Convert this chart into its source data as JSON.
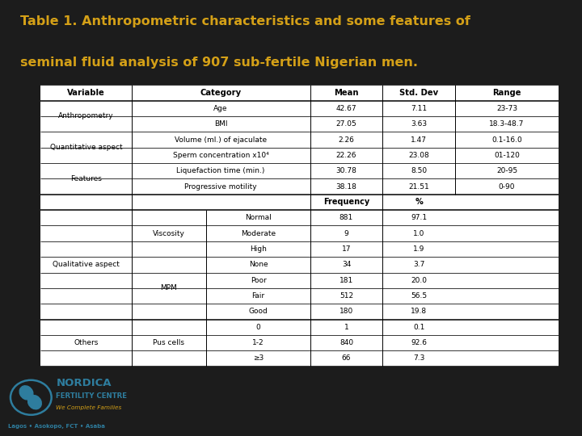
{
  "title_line1": "Table 1. Anthropometric characteristics and some features of",
  "title_line2": "seminal fluid analysis of 907 sub-fertile Nigerian men.",
  "title_color": "#D4A017",
  "bg_color": "#1c1c1c",
  "table_bg": "#ffffff",
  "rows_quant": [
    {
      "var": "Anthropometry",
      "cat2": "Age",
      "mean": "42.67",
      "std": "7.11",
      "range": "23-73"
    },
    {
      "var": "Anthropometry",
      "cat2": "BMI",
      "mean": "27.05",
      "std": "3.63",
      "range": "18.3-48.7"
    },
    {
      "var": "Quantitative aspect",
      "cat2": "Volume (ml.) of ejaculate",
      "mean": "2.26",
      "std": "1.47",
      "range": "0.1-16.0"
    },
    {
      "var": "Quantitative aspect",
      "cat2": "Sperm concentration x10⁴",
      "mean": "22.26",
      "std": "23.08",
      "range": "01-120"
    },
    {
      "var": "Features",
      "cat2": "Liquefaction time (min.)",
      "mean": "30.78",
      "std": "8.50",
      "range": "20-95"
    },
    {
      "var": "Features",
      "cat2": "Progressive motility",
      "mean": "38.18",
      "std": "21.51",
      "range": "0-90"
    }
  ],
  "rows_qual": [
    {
      "var": "Qualitative aspect",
      "cat1": "Viscosity",
      "cat2": "Normal",
      "freq": "881",
      "pct": "97.1"
    },
    {
      "var": "Qualitative aspect",
      "cat1": "Viscosity",
      "cat2": "Moderate",
      "freq": "9",
      "pct": "1.0"
    },
    {
      "var": "Qualitative aspect",
      "cat1": "Viscosity",
      "cat2": "High",
      "freq": "17",
      "pct": "1.9"
    },
    {
      "var": "Qualitative aspect",
      "cat1": "MPM",
      "cat2": "None",
      "freq": "34",
      "pct": "3.7"
    },
    {
      "var": "Qualitative aspect",
      "cat1": "MPM",
      "cat2": "Poor",
      "freq": "181",
      "pct": "20.0"
    },
    {
      "var": "Qualitative aspect",
      "cat1": "MPM",
      "cat2": "Fair",
      "freq": "512",
      "pct": "56.5"
    },
    {
      "var": "Qualitative aspect",
      "cat1": "MPM",
      "cat2": "Good",
      "freq": "180",
      "pct": "19.8"
    }
  ],
  "rows_others": [
    {
      "var": "Others",
      "cat1": "Pus cells",
      "cat2": "0",
      "freq": "1",
      "pct": "0.1"
    },
    {
      "var": "Others",
      "cat1": "Pus cells",
      "cat2": "1-2",
      "freq": "840",
      "pct": "92.6"
    },
    {
      "var": "Others",
      "cat1": "Pus cells",
      "cat2": "≥3",
      "freq": "66",
      "pct": "7.3"
    }
  ],
  "nordica_blue": "#2e7d9e",
  "nordica_gold": "#D4A017"
}
